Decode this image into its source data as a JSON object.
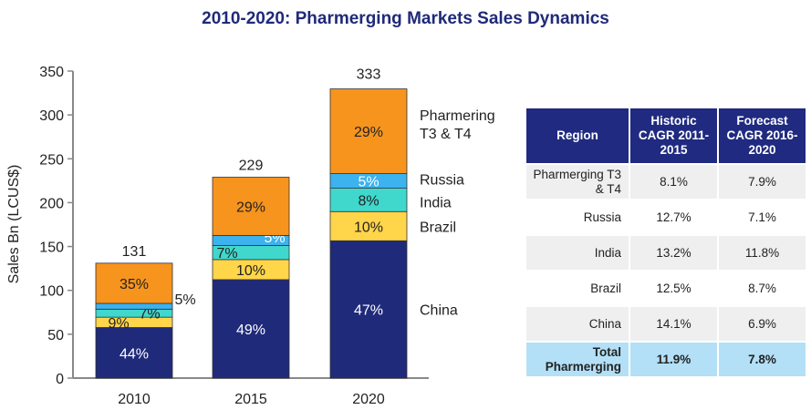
{
  "title": "2010-2020: Pharmerging Markets Sales Dynamics",
  "chart_data": {
    "type": "bar",
    "stacked": true,
    "title": "2010-2020: Pharmerging Markets Sales Dynamics",
    "ylabel": "Sales Bn (LCUS$)",
    "xlabel": "",
    "ylim": [
      0,
      350
    ],
    "yticks": [
      0,
      50,
      100,
      150,
      200,
      250,
      300,
      350
    ],
    "categories": [
      "2010",
      "2015",
      "2020"
    ],
    "totals": [
      131,
      229,
      333
    ],
    "series": [
      {
        "name": "China",
        "color": "#1f2a7a",
        "shares": [
          44,
          49,
          47
        ],
        "labels": [
          "44%",
          "49%",
          "47%"
        ]
      },
      {
        "name": "Brazil",
        "color": "#ffd54a",
        "shares": [
          9,
          10,
          10
        ],
        "labels": [
          "9%",
          "10%",
          "10%"
        ]
      },
      {
        "name": "India",
        "color": "#40d8cc",
        "shares": [
          7,
          7,
          8
        ],
        "labels": [
          "7%",
          "7%",
          "8%"
        ]
      },
      {
        "name": "Russia",
        "color": "#3cb2ee",
        "shares": [
          5,
          5,
          5
        ],
        "labels": [
          "5%",
          "5%",
          "5%"
        ]
      },
      {
        "name": "Pharmering T3 & T4",
        "color": "#f7941d",
        "shares": [
          35,
          29,
          29
        ],
        "labels": [
          "35%",
          "29%",
          "29%"
        ]
      }
    ],
    "legend": [
      "China",
      "Brazil",
      "India",
      "Russia",
      "Pharmering T3 & T4"
    ]
  },
  "table": {
    "headers": [
      "Region",
      "Historic CAGR 2011-2015",
      "Forecast CAGR 2016-2020"
    ],
    "rows": [
      [
        "Pharmerging T3 & T4",
        "8.1%",
        "7.9%"
      ],
      [
        "Russia",
        "12.7%",
        "7.1%"
      ],
      [
        "India",
        "13.2%",
        "11.8%"
      ],
      [
        "Brazil",
        "12.5%",
        "8.7%"
      ],
      [
        "China",
        "14.1%",
        "6.9%"
      ]
    ],
    "total": [
      "Total Pharmerging",
      "11.9%",
      "7.8%"
    ]
  }
}
